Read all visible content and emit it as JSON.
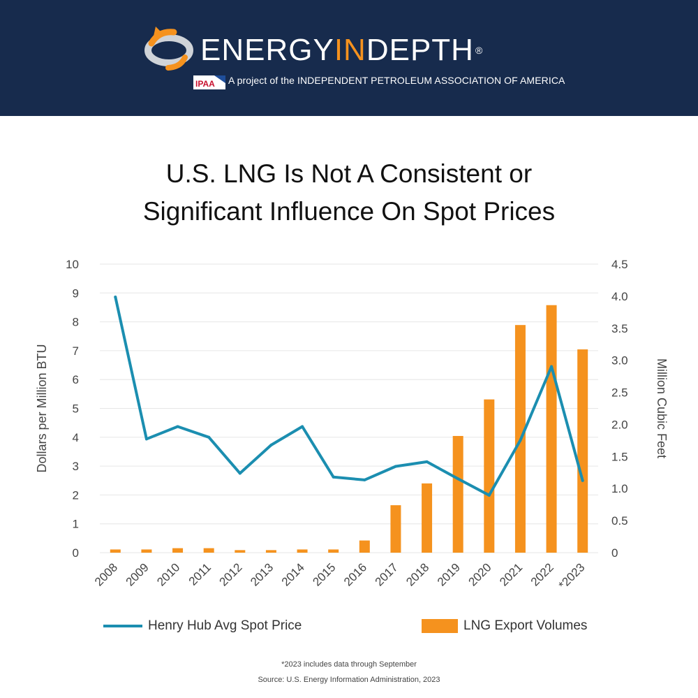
{
  "header": {
    "brand_part1": "ENERGY",
    "brand_part2": "IN",
    "brand_part3": "DEPTH",
    "registered_mark": "®",
    "ipaa_logo_text": "IPAA",
    "tagline": "A project of the INDEPENDENT PETROLEUM ASSOCIATION OF AMERICA",
    "colors": {
      "background": "#172b4d",
      "accent": "#f5921e"
    }
  },
  "title_lines": [
    "U.S. LNG Is Not A Consistent or",
    "Significant Influence On Spot Prices"
  ],
  "chart_data": {
    "type": "bar",
    "title": "U.S. LNG Is Not A Consistent or Significant Influence On Spot Prices",
    "categories": [
      "2008",
      "2009",
      "2010",
      "2011",
      "2012",
      "2013",
      "2014",
      "2015",
      "2016",
      "2017",
      "2018",
      "2019",
      "2020",
      "2021",
      "2022",
      "*2023"
    ],
    "y_left": {
      "label": "Dollars per Million BTU",
      "range": [
        0,
        10
      ],
      "ticks": [
        "0",
        "1",
        "2",
        "3",
        "4",
        "5",
        "6",
        "7",
        "8",
        "9",
        "10"
      ]
    },
    "y_right": {
      "label": "Million Cubic Feet",
      "range": [
        0,
        4.5
      ],
      "ticks": [
        "0",
        "0.5",
        "1.0",
        "1.5",
        "2.0",
        "2.5",
        "3.0",
        "3.5",
        "4.0",
        "4.5"
      ]
    },
    "grid": true,
    "legend_position": "bottom",
    "series": [
      {
        "name": "Henry Hub Avg Spot Price",
        "type": "line",
        "axis": "left",
        "color": "#1b8eb0",
        "values": [
          8.86,
          3.94,
          4.37,
          4.0,
          2.75,
          3.73,
          4.37,
          2.62,
          2.52,
          2.99,
          3.15,
          2.56,
          1.99,
          3.89,
          6.45,
          2.5
        ]
      },
      {
        "name": "LNG Export Volumes",
        "type": "bar",
        "axis": "right",
        "color": "#f5921e",
        "values": [
          0.05,
          0.05,
          0.07,
          0.07,
          0.04,
          0.04,
          0.05,
          0.05,
          0.19,
          0.74,
          1.08,
          1.82,
          2.39,
          3.55,
          3.86,
          3.17
        ]
      }
    ]
  },
  "footnotes": {
    "note": "*2023 includes data through September",
    "source": "Source: U.S. Energy Information Administration, 2023"
  }
}
